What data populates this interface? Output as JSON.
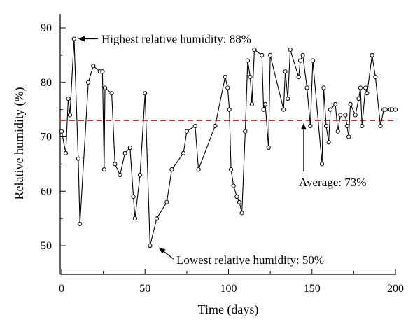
{
  "chart_data": {
    "type": "line",
    "xlabel": "Time (days)",
    "ylabel": "Relative humidity (%)",
    "xlim": [
      0,
      200
    ],
    "ylim": [
      45,
      92
    ],
    "x_ticks": [
      0,
      50,
      100,
      150,
      200
    ],
    "y_ticks": [
      50,
      60,
      70,
      80,
      90
    ],
    "grid": false,
    "series": [
      {
        "x": [
          0,
          2.5,
          4,
          5,
          7.5,
          10,
          11,
          16,
          19,
          23,
          24.5,
          25.5,
          26,
          30,
          32,
          35,
          38,
          41,
          43,
          44,
          47,
          50,
          53,
          57,
          63,
          66,
          73,
          75,
          80,
          82,
          92,
          98,
          99.5,
          100.5,
          101.5,
          103,
          105,
          106.5,
          108,
          110,
          111.5,
          113,
          114,
          115.5,
          120,
          121,
          122,
          124,
          125,
          133,
          134,
          135.5,
          137,
          142,
          143,
          144.5,
          147,
          149,
          150.5,
          156,
          157,
          158.5,
          160,
          161,
          164,
          165.5,
          167,
          170,
          171,
          172,
          173,
          176,
          178,
          179,
          180,
          182,
          183,
          186,
          188,
          191,
          193,
          194,
          197,
          198,
          200
        ],
        "y": [
          71,
          67,
          77,
          74,
          88,
          66,
          54,
          80,
          83,
          82,
          82,
          64,
          79,
          78,
          65,
          63,
          67,
          68,
          59,
          55,
          63,
          78,
          50,
          55,
          58,
          64,
          67,
          71,
          72,
          64,
          72,
          81,
          79,
          75,
          64,
          61,
          59,
          58,
          56,
          71,
          84,
          81,
          76,
          86,
          85,
          75,
          76,
          68,
          85,
          75,
          82,
          77,
          86,
          81,
          84,
          85,
          79,
          72,
          84,
          65,
          79,
          72,
          69,
          75,
          76,
          71,
          74,
          74,
          72,
          70,
          76,
          74,
          77,
          79,
          72,
          79,
          78,
          85,
          81,
          72,
          75,
          75,
          75,
          75,
          75
        ]
      }
    ],
    "average": {
      "value": 73,
      "color": "#e0202b"
    },
    "annotations": [
      {
        "text": "Highest relative humidity: 88%",
        "x": 7.5,
        "y": 88
      },
      {
        "text": "Lowest relative humidity: 50%",
        "x": 57,
        "y": 50
      },
      {
        "text": "Average: 73%",
        "x": 145,
        "y": 73
      }
    ]
  }
}
